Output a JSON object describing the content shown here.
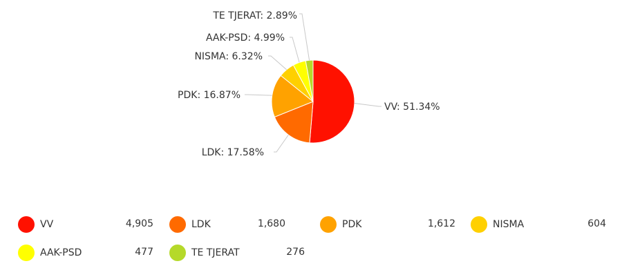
{
  "chart_data": {
    "type": "pie",
    "title": "",
    "slices": [
      {
        "label": "VV",
        "value": 4905,
        "percent_label": "51.34%",
        "color": "#ff1100"
      },
      {
        "label": "LDK",
        "value": 1680,
        "percent_label": "17.58%",
        "color": "#ff6a00"
      },
      {
        "label": "PDK",
        "value": 1612,
        "percent_label": "16.87%",
        "color": "#ffa200"
      },
      {
        "label": "NISMA",
        "value": 604,
        "percent_label": "6.32%",
        "color": "#ffd000"
      },
      {
        "label": "AAK-PSD",
        "value": 477,
        "percent_label": "4.99%",
        "color": "#ffff00"
      },
      {
        "label": "TE TJERAT",
        "value": 276,
        "percent_label": "2.89%",
        "color": "#b5d92a"
      }
    ],
    "legend_placement": "bottom"
  },
  "legend": {
    "items": [
      {
        "label": "VV",
        "value": "4,905",
        "color": "#ff1100"
      },
      {
        "label": "LDK",
        "value": "1,680",
        "color": "#ff6a00"
      },
      {
        "label": "PDK",
        "value": "1,612",
        "color": "#ffa200"
      },
      {
        "label": "NISMA",
        "value": "604",
        "color": "#ffd000"
      },
      {
        "label": "AAK-PSD",
        "value": "477",
        "color": "#ffff00"
      },
      {
        "label": "TE TJERAT",
        "value": "276",
        "color": "#b5d92a"
      }
    ]
  }
}
